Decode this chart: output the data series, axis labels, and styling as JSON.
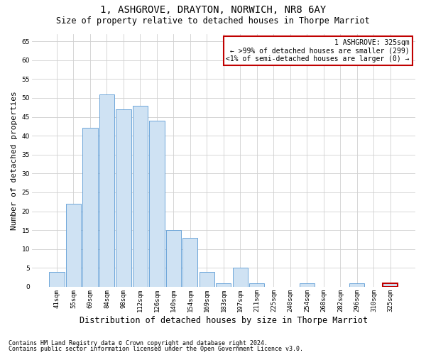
{
  "title": "1, ASHGROVE, DRAYTON, NORWICH, NR8 6AY",
  "subtitle": "Size of property relative to detached houses in Thorpe Marriot",
  "xlabel": "Distribution of detached houses by size in Thorpe Marriot",
  "ylabel": "Number of detached properties",
  "categories": [
    "41sqm",
    "55sqm",
    "69sqm",
    "84sqm",
    "98sqm",
    "112sqm",
    "126sqm",
    "140sqm",
    "154sqm",
    "169sqm",
    "183sqm",
    "197sqm",
    "211sqm",
    "225sqm",
    "240sqm",
    "254sqm",
    "268sqm",
    "282sqm",
    "296sqm",
    "310sqm",
    "325sqm"
  ],
  "values": [
    4,
    22,
    42,
    51,
    47,
    48,
    44,
    15,
    13,
    4,
    1,
    5,
    1,
    0,
    0,
    1,
    0,
    0,
    1,
    0,
    1
  ],
  "bar_color": "#cfe2f3",
  "bar_edge_color": "#5b9bd5",
  "highlight_index": 20,
  "highlight_edge_color": "#c00000",
  "annotation_text_line1": "1 ASHGROVE: 325sqm",
  "annotation_text_line2": "← >99% of detached houses are smaller (299)",
  "annotation_text_line3": "<1% of semi-detached houses are larger (0) →",
  "ylim": [
    0,
    67
  ],
  "yticks": [
    0,
    5,
    10,
    15,
    20,
    25,
    30,
    35,
    40,
    45,
    50,
    55,
    60,
    65
  ],
  "footer_line1": "Contains HM Land Registry data © Crown copyright and database right 2024.",
  "footer_line2": "Contains public sector information licensed under the Open Government Licence v3.0.",
  "bg_color": "#ffffff",
  "grid_color": "#d0d0d0",
  "title_fontsize": 10,
  "subtitle_fontsize": 8.5,
  "ylabel_fontsize": 8,
  "xlabel_fontsize": 8.5,
  "tick_fontsize": 6.5,
  "annot_fontsize": 7,
  "footer_fontsize": 6
}
